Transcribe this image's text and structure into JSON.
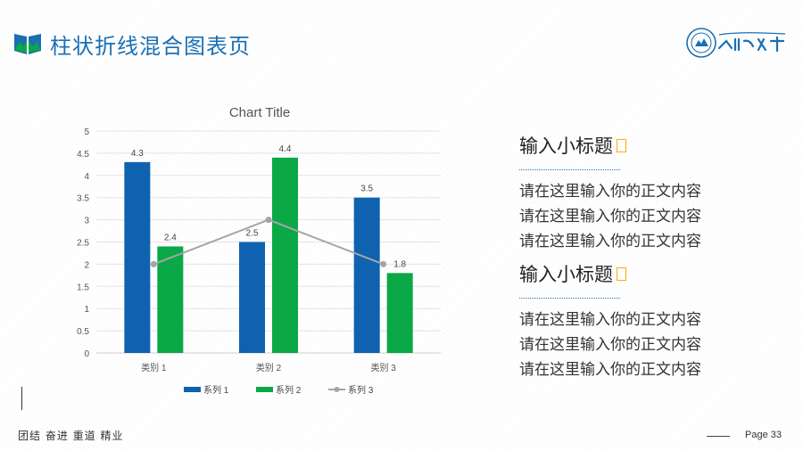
{
  "header": {
    "title": "柱状折线混合图表页"
  },
  "chart_data": {
    "type": "bar",
    "title": "Chart Title",
    "categories": [
      "类别 1",
      "类别 2",
      "类别 3"
    ],
    "ylim": [
      0,
      5
    ],
    "yticks": [
      0,
      0.5,
      1,
      1.5,
      2,
      2.5,
      3,
      3.5,
      4,
      4.5,
      5
    ],
    "grid": true,
    "legend_position": "bottom",
    "series": [
      {
        "name": "系列 1",
        "type": "bar",
        "color": "#0f62b0",
        "values": [
          4.3,
          2.5,
          3.5
        ],
        "show_labels": true
      },
      {
        "name": "系列 2",
        "type": "bar",
        "color": "#0aa847",
        "values": [
          2.4,
          4.4,
          1.8
        ],
        "show_labels": true
      },
      {
        "name": "系列 3",
        "type": "line",
        "color": "#a5a5a5",
        "values": [
          2,
          3,
          2
        ],
        "show_labels": false
      }
    ]
  },
  "side": {
    "sections": [
      {
        "title": "输入小标题",
        "lines": [
          "请在这里输入你的正文内容",
          "请在这里输入你的正文内容",
          "请在这里输入你的正文内容"
        ]
      },
      {
        "title": "输入小标题",
        "lines": [
          "请在这里输入你的正文内容",
          "请在这里输入你的正文内容",
          "请在这里输入你的正文内容"
        ]
      }
    ]
  },
  "footer": {
    "motto": "团结  奋进  重道  精业",
    "page": "Page 33"
  },
  "colors": {
    "accent": "#1a6fb5",
    "marker": "#f2b100"
  }
}
